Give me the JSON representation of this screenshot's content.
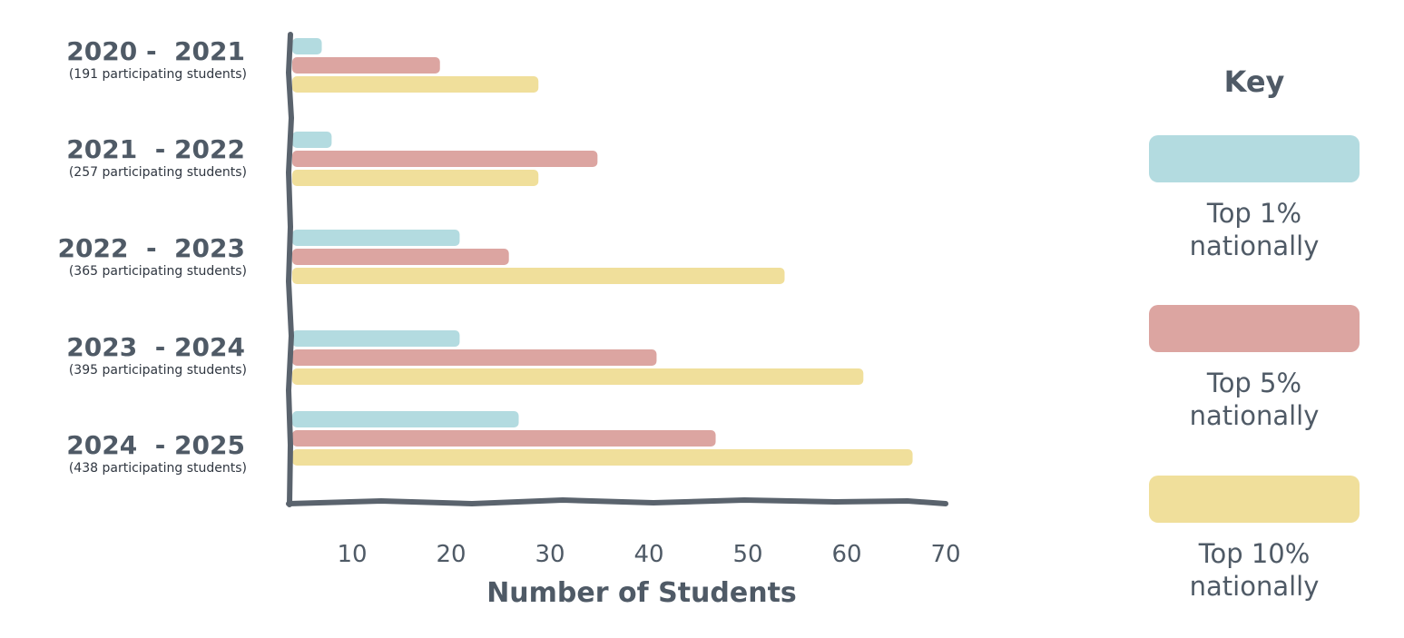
{
  "chart_data": {
    "type": "bar",
    "orientation": "horizontal",
    "categories": [
      {
        "title": "2020 -  2021",
        "subtitle": "(191 participating students)"
      },
      {
        "title": "2021  - 2022",
        "subtitle": "(257 participating students)"
      },
      {
        "title": "2022  -  2023",
        "subtitle": "(365 participating students)"
      },
      {
        "title": "2023  - 2024",
        "subtitle": "(395 participating students)"
      },
      {
        "title": "2024  - 2025",
        "subtitle": "(438 participating students)"
      }
    ],
    "series": [
      {
        "name": "Top 1%\nnationally",
        "color": "#b3dbe0",
        "values": [
          7,
          8,
          21,
          21,
          27
        ]
      },
      {
        "name": "Top 5%\nnationally",
        "color": "#dca5a1",
        "values": [
          19,
          35,
          26,
          41,
          47
        ]
      },
      {
        "name": "Top 10%\nnationally",
        "color": "#f0df9b",
        "values": [
          29,
          29,
          54,
          62,
          67
        ]
      }
    ],
    "xticks": [
      "10",
      "20",
      "30",
      "40",
      "50",
      "60",
      "70"
    ],
    "xtick_values": [
      10,
      20,
      30,
      40,
      50,
      60,
      70
    ],
    "xlabel": "Number of Students",
    "xlim": [
      4,
      70
    ],
    "legend": {
      "title": "Key",
      "placement": "right"
    },
    "axis_color": "#5a636d",
    "text_color": "#4f5a66"
  }
}
